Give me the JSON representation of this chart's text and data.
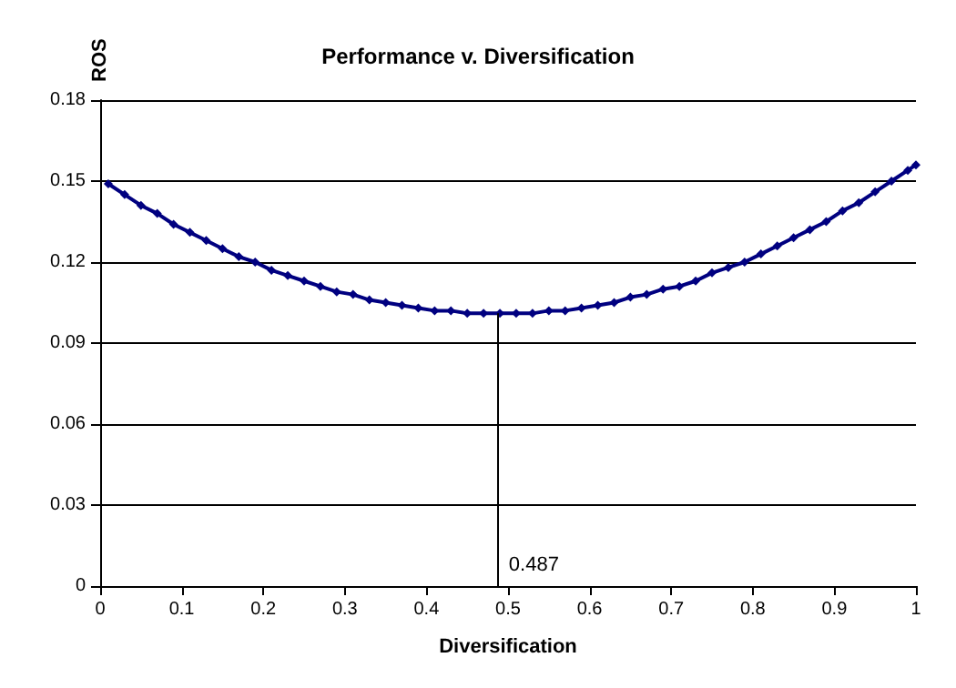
{
  "chart_data": {
    "type": "line",
    "title": "Performance v. Diversification",
    "xlabel": "Diversification",
    "ylabel": "ROS",
    "x": [
      0.01,
      0.03,
      0.05,
      0.07,
      0.09,
      0.11,
      0.13,
      0.15,
      0.17,
      0.19,
      0.21,
      0.23,
      0.25,
      0.27,
      0.29,
      0.31,
      0.33,
      0.35,
      0.37,
      0.39,
      0.41,
      0.43,
      0.45,
      0.47,
      0.49,
      0.51,
      0.53,
      0.55,
      0.57,
      0.59,
      0.61,
      0.63,
      0.65,
      0.67,
      0.69,
      0.71,
      0.73,
      0.75,
      0.77,
      0.79,
      0.81,
      0.83,
      0.85,
      0.87,
      0.89,
      0.91,
      0.93,
      0.95,
      0.97,
      0.99,
      1.0
    ],
    "series": [
      {
        "color": "#000080",
        "values": [
          0.149,
          0.145,
          0.141,
          0.138,
          0.134,
          0.131,
          0.128,
          0.125,
          0.122,
          0.12,
          0.117,
          0.115,
          0.113,
          0.111,
          0.109,
          0.108,
          0.106,
          0.105,
          0.104,
          0.103,
          0.102,
          0.102,
          0.101,
          0.101,
          0.101,
          0.101,
          0.101,
          0.102,
          0.102,
          0.103,
          0.104,
          0.105,
          0.107,
          0.108,
          0.11,
          0.111,
          0.113,
          0.116,
          0.118,
          0.12,
          0.123,
          0.126,
          0.129,
          0.132,
          0.135,
          0.139,
          0.142,
          0.146,
          0.15,
          0.154,
          0.156
        ]
      }
    ],
    "xlim": [
      0,
      1
    ],
    "xticks": [
      0,
      0.1,
      0.2,
      0.3,
      0.4,
      0.5,
      0.6,
      0.7,
      0.8,
      0.9,
      1
    ],
    "ylim": [
      0,
      0.18
    ],
    "yticks": [
      0,
      0.03,
      0.06,
      0.09,
      0.12,
      0.15,
      0.18
    ],
    "ref_lines": [
      {
        "axis": "x",
        "value": 0.487,
        "label": "0.487",
        "color": "#000000"
      }
    ],
    "grid": "y",
    "marker": "diamond",
    "line_style": "solid"
  }
}
